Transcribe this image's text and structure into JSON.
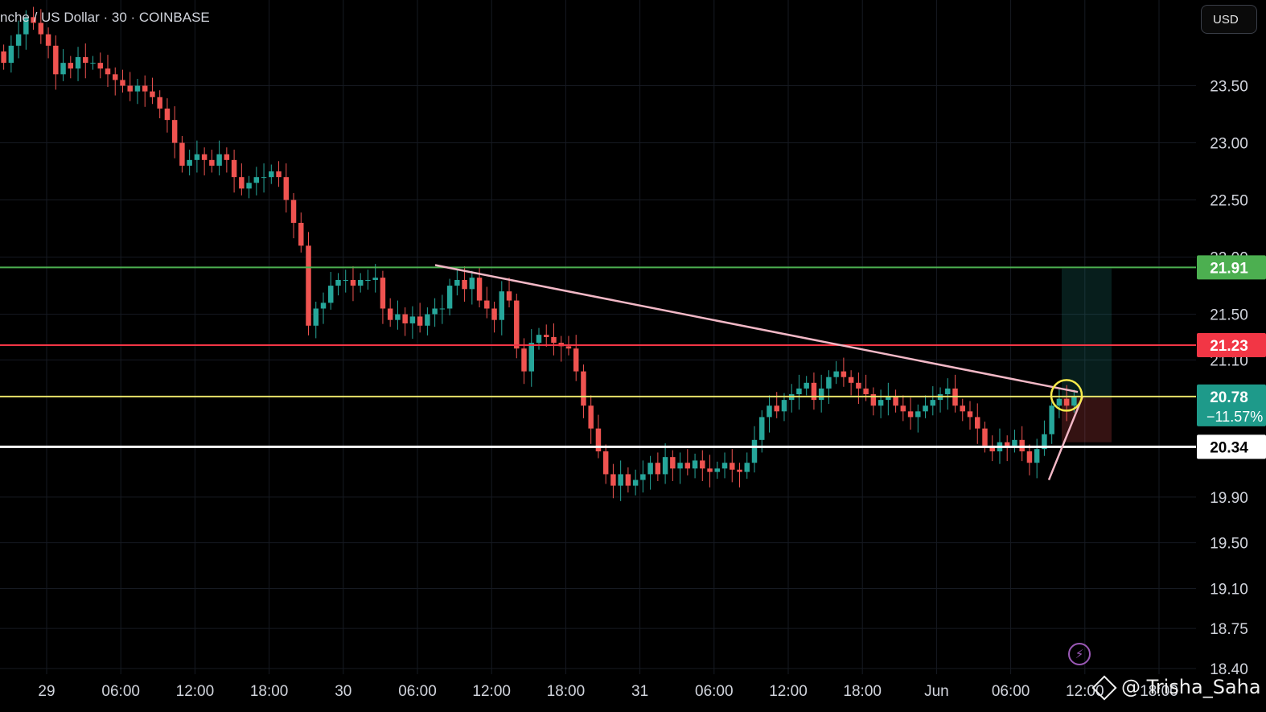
{
  "header": {
    "symbol_title": "nche / US Dollar · 30 · COINBASE",
    "currency": "USD"
  },
  "watermark": "@ Trisha_Saha",
  "colors": {
    "up": "#26a69a",
    "down": "#ef5350",
    "green_line": "#4caf50",
    "red_line": "#f23645",
    "yellow_line": "#e8e36a",
    "white_line": "#ffffff",
    "trendline": "#f2b8c6"
  },
  "chart_data": {
    "type": "candlestick",
    "ylim": [
      18.35,
      24.25
    ],
    "y_ticks": [
      "23.50",
      "23.00",
      "22.50",
      "22.00",
      "21.50",
      "21.10",
      "19.90",
      "19.50",
      "19.10",
      "18.75",
      "18.40"
    ],
    "x_ticks": [
      "29",
      "06:00",
      "12:00",
      "18:00",
      "30",
      "06:00",
      "12:00",
      "18:00",
      "31",
      "06:00",
      "12:00",
      "18:00",
      "Jun",
      "06:00",
      "12:00",
      "18:00"
    ],
    "levels": [
      {
        "label": "21.91",
        "value": 21.91,
        "color": "#4caf50"
      },
      {
        "label": "21.23",
        "value": 21.23,
        "color": "#f23645"
      },
      {
        "label": "20.78",
        "value": 20.78,
        "color": "#e8e36a",
        "sub": "−11.57%"
      },
      {
        "label": "20.34",
        "value": 20.34,
        "color": "#ffffff"
      }
    ],
    "trendline_upper": {
      "from": [
        8.5,
        21.93
      ],
      "to": [
        33.2,
        20.82
      ]
    },
    "trendline_lower": {
      "from": [
        32.2,
        20.05
      ],
      "to": [
        33.4,
        20.78
      ]
    },
    "position": {
      "x_from": 33.0,
      "x_to": 34.0,
      "target": 21.9,
      "entry": 20.77,
      "stop": 20.38
    },
    "candles_ohlc_close": [
      23.7,
      23.85,
      23.95,
      24.1,
      24.05,
      23.95,
      23.85,
      23.6,
      23.7,
      23.65,
      23.75,
      23.7,
      23.7,
      23.65,
      23.6,
      23.55,
      23.5,
      23.45,
      23.5,
      23.45,
      23.4,
      23.3,
      23.2,
      23.0,
      22.8,
      22.85,
      22.9,
      22.85,
      22.8,
      22.9,
      22.85,
      22.7,
      22.6,
      22.65,
      22.7,
      22.7,
      22.75,
      22.7,
      22.5,
      22.3,
      22.1,
      21.4,
      21.55,
      21.6,
      21.75,
      21.8,
      21.8,
      21.75,
      21.8,
      21.8,
      21.82,
      21.55,
      21.45,
      21.5,
      21.42,
      21.48,
      21.4,
      21.5,
      21.55,
      21.55,
      21.75,
      21.8,
      21.72,
      21.82,
      21.62,
      21.55,
      21.45,
      21.7,
      21.62,
      21.2,
      21.0,
      21.25,
      21.32,
      21.3,
      21.25,
      21.22,
      21.2,
      21.0,
      20.7,
      20.5,
      20.3,
      20.1,
      20.0,
      20.1,
      20.0,
      20.05,
      20.1,
      20.2,
      20.1,
      20.25,
      20.15,
      20.2,
      20.15,
      20.22,
      20.15,
      20.12,
      20.15,
      20.2,
      20.14,
      20.12,
      20.2,
      20.4,
      20.6,
      20.7,
      20.65,
      20.75,
      20.8,
      20.85,
      20.9,
      20.75,
      20.85,
      20.95,
      21.0,
      20.95,
      20.9,
      20.85,
      20.8,
      20.7,
      20.75,
      20.78,
      20.7,
      20.65,
      20.6,
      20.65,
      20.7,
      20.75,
      20.8,
      20.85,
      20.7,
      20.65,
      20.6,
      20.5,
      20.35,
      20.3,
      20.38,
      20.35,
      20.4,
      20.3,
      20.2,
      20.32,
      20.45,
      20.7,
      20.76,
      20.7,
      20.78
    ]
  }
}
